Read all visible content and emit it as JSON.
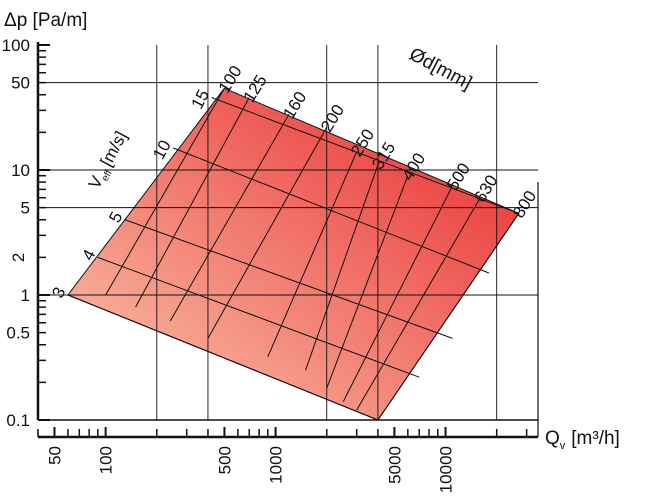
{
  "chart_data": {
    "type": "area",
    "title": "",
    "ylabel": "Δp [Pa/m]",
    "xlabel_main": "Q",
    "xlabel_sub": "v",
    "xlabel_unit": "[m³/h]",
    "x_scale": "log",
    "y_scale": "log",
    "xlim": [
      40,
      35000
    ],
    "ylim": [
      0.1,
      100
    ],
    "y_ticks": [
      {
        "value": 0.1,
        "label": "0.1"
      },
      {
        "value": 0.5,
        "label": "0.5"
      },
      {
        "value": 1,
        "label": "1"
      },
      {
        "value": 2,
        "label": "2"
      },
      {
        "value": 5,
        "label": "5"
      },
      {
        "value": 10,
        "label": "10"
      },
      {
        "value": 50,
        "label": "50"
      },
      {
        "value": 100,
        "label": "100"
      }
    ],
    "x_ticks": [
      {
        "value": 50,
        "label": "50"
      },
      {
        "value": 100,
        "label": "100"
      },
      {
        "value": 500,
        "label": "500"
      },
      {
        "value": 1000,
        "label": "1000"
      },
      {
        "value": 5000,
        "label": "5000"
      },
      {
        "value": 10000,
        "label": "10000"
      }
    ],
    "grid_x": [
      200,
      400,
      2000,
      4000,
      20000
    ],
    "grid_y": [
      0.1,
      1,
      5,
      10,
      50
    ],
    "region_corners": {
      "top": [
        500,
        45
      ],
      "right": [
        27000,
        4.5
      ],
      "bottom": [
        4000,
        0.1
      ],
      "left": [
        60,
        1
      ]
    },
    "diameter_title": "Ød[mm]",
    "diameter_lines": [
      {
        "label": "100",
        "top": [
          500,
          45
        ],
        "bottom": [
          100,
          1
        ]
      },
      {
        "label": "125",
        "top": [
          700,
          38
        ],
        "bottom": [
          150,
          0.8
        ]
      },
      {
        "label": "160",
        "top": [
          1200,
          28
        ],
        "bottom": [
          240,
          0.62
        ]
      },
      {
        "label": "200",
        "top": [
          2000,
          22
        ],
        "bottom": [
          400,
          0.45
        ]
      },
      {
        "label": "250",
        "top": [
          3000,
          14
        ],
        "bottom": [
          900,
          0.32
        ]
      },
      {
        "label": "315",
        "top": [
          4000,
          11
        ],
        "bottom": [
          1500,
          0.25
        ]
      },
      {
        "label": "400",
        "top": [
          6000,
          9
        ],
        "bottom": [
          2000,
          0.18
        ]
      },
      {
        "label": "500",
        "top": [
          11000,
          7.5
        ],
        "bottom": [
          2500,
          0.14
        ]
      },
      {
        "label": "630",
        "top": [
          16000,
          6
        ],
        "bottom": [
          3000,
          0.12
        ]
      },
      {
        "label": "800",
        "top": [
          27000,
          4.5
        ],
        "bottom": [
          4000,
          0.1
        ]
      }
    ],
    "velocity_title": "V",
    "velocity_title_sub": "eff",
    "velocity_title_unit": "[m/s]",
    "velocity_lines": [
      {
        "label": "3",
        "left": [
          60,
          1
        ],
        "right": [
          4000,
          0.1
        ]
      },
      {
        "label": "4",
        "left": [
          90,
          2
        ],
        "right": [
          7000,
          0.22
        ]
      },
      {
        "label": "5",
        "left": [
          130,
          4
        ],
        "right": [
          11000,
          0.45
        ]
      },
      {
        "label": "10",
        "left": [
          250,
          15
        ],
        "right": [
          18000,
          1.5
        ]
      },
      {
        "label": "15",
        "left": [
          420,
          38
        ],
        "right": [
          27000,
          4.5
        ]
      }
    ],
    "colors": {
      "fill_light": "#f9c0a6",
      "fill_dark": "#e8262a",
      "lines": "#111111"
    }
  }
}
